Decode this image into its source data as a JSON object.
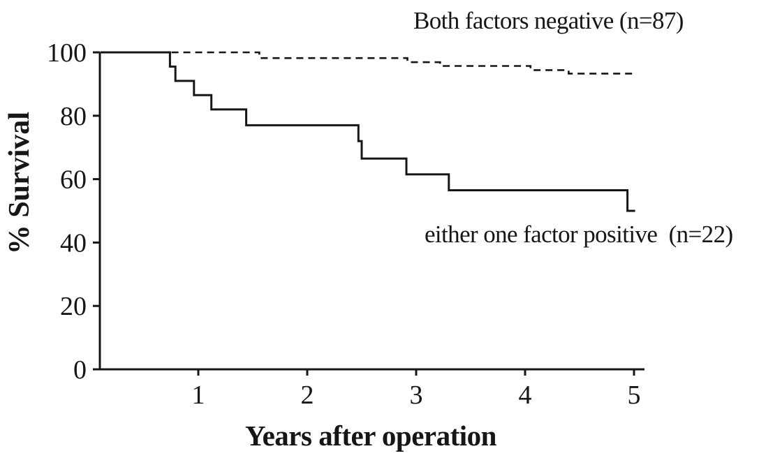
{
  "chart_data": {
    "type": "line",
    "subtype": "kaplan-meier-step-curves",
    "title": "",
    "xlabel": "Years after operation",
    "ylabel": "% Survival",
    "xlim": [
      0,
      5.1
    ],
    "ylim": [
      0,
      100
    ],
    "xticks": [
      "1",
      "2",
      "3",
      "4",
      "5"
    ],
    "xtick_values": [
      1,
      2,
      3,
      4,
      5
    ],
    "yticks": [
      "100",
      "80",
      "60",
      "40",
      "20",
      "0"
    ],
    "ytick_values": [
      100,
      80,
      60,
      40,
      20,
      0
    ],
    "grid": false,
    "legend_position": "annotations-inside-plot",
    "series": [
      {
        "name": "Both factors negative (n=87)",
        "style": "dashed",
        "color": "#161616",
        "start": {
          "x": 0.1,
          "y": 100
        },
        "steps": [
          {
            "x": 1.56,
            "y": 98.2
          },
          {
            "x": 2.92,
            "y": 96.9
          },
          {
            "x": 3.22,
            "y": 95.7
          },
          {
            "x": 4.05,
            "y": 94.4
          },
          {
            "x": 4.4,
            "y": 93.3
          }
        ],
        "end_x": 4.99
      },
      {
        "name": "either one factor positive  (n=22)",
        "style": "solid",
        "color": "#161616",
        "start": {
          "x": 0.1,
          "y": 100
        },
        "steps": [
          {
            "x": 0.74,
            "y": 95.5
          },
          {
            "x": 0.79,
            "y": 91.0
          },
          {
            "x": 0.96,
            "y": 86.5
          },
          {
            "x": 1.12,
            "y": 82.0
          },
          {
            "x": 1.44,
            "y": 77.0
          },
          {
            "x": 2.47,
            "y": 72.0
          },
          {
            "x": 2.5,
            "y": 66.5
          },
          {
            "x": 2.91,
            "y": 61.5
          },
          {
            "x": 3.3,
            "y": 56.5
          },
          {
            "x": 4.94,
            "y": 50.0
          }
        ],
        "end_x": 5.01
      }
    ],
    "annotations": [
      {
        "text": "Both factors negative (n=87)",
        "series": 0,
        "placement": "above dashed curve, top right"
      },
      {
        "text": "either one factor positive  (n=22)",
        "series": 1,
        "placement": "below solid curve, middle right"
      }
    ]
  },
  "colors": {
    "foreground": "#161616",
    "background": "#ffffff"
  }
}
